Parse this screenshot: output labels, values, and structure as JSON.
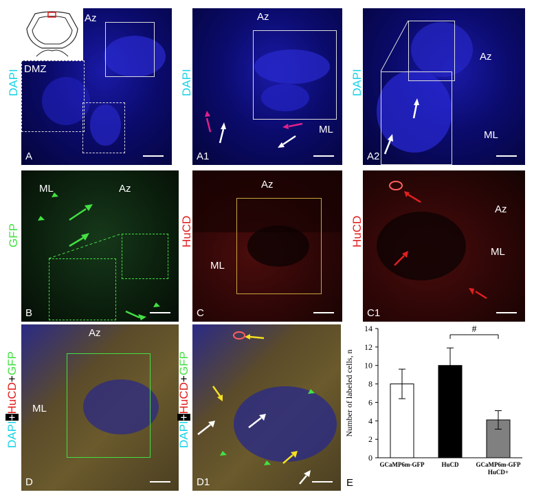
{
  "panels": {
    "A": {
      "label": "A",
      "stain": "DAPI",
      "regions": [
        "Az",
        "DMZ"
      ]
    },
    "A1": {
      "label": "A1",
      "stain": "DAPI",
      "regions": [
        "Az",
        "ML"
      ]
    },
    "A2": {
      "label": "A2",
      "stain": "DAPI",
      "regions": [
        "Az",
        "ML"
      ]
    },
    "B": {
      "label": "B",
      "stain": "GFP",
      "regions": [
        "ML",
        "Az"
      ]
    },
    "C": {
      "label": "C",
      "stain": "HuCD",
      "regions": [
        "Az",
        "ML"
      ]
    },
    "C1": {
      "label": "C1",
      "stain": "HuCD",
      "regions": [
        "Az",
        "ML"
      ]
    },
    "D": {
      "label": "D",
      "stain_parts": [
        "DAPI",
        "+",
        "HuCD",
        "+",
        "GFP"
      ],
      "regions": [
        "Az",
        "ML"
      ]
    },
    "D1": {
      "label": "D1",
      "stain_parts": [
        "DAPI",
        "+",
        "HuCD",
        "+",
        "GFP"
      ]
    },
    "E": {
      "label": "E"
    }
  },
  "colors": {
    "dapi": "#19d3e6",
    "gfp": "#44e044",
    "hucd": "#e02020",
    "white": "#ffffff",
    "magenta": "#e0208a",
    "yellow": "#f5e020"
  },
  "chart_data": {
    "type": "bar",
    "ylabel": "Number of labeled cells, n",
    "ylim": [
      0,
      14
    ],
    "yticks": [
      0,
      2,
      4,
      6,
      8,
      10,
      12,
      14
    ],
    "categories": [
      "GCaMP6m-GFP",
      "HuCD",
      "GCaMP6m-GFP HuCD+"
    ],
    "category_lines": [
      [
        "GCaMP6m-GFP"
      ],
      [
        "HuCD"
      ],
      [
        "GCaMP6m-GFP",
        "HuCD+"
      ]
    ],
    "values": [
      8.0,
      10.0,
      4.1
    ],
    "errors": [
      1.6,
      1.9,
      1.0
    ],
    "fill_colors": [
      "#ffffff",
      "#000000",
      "#808080"
    ],
    "annotation": "#"
  }
}
